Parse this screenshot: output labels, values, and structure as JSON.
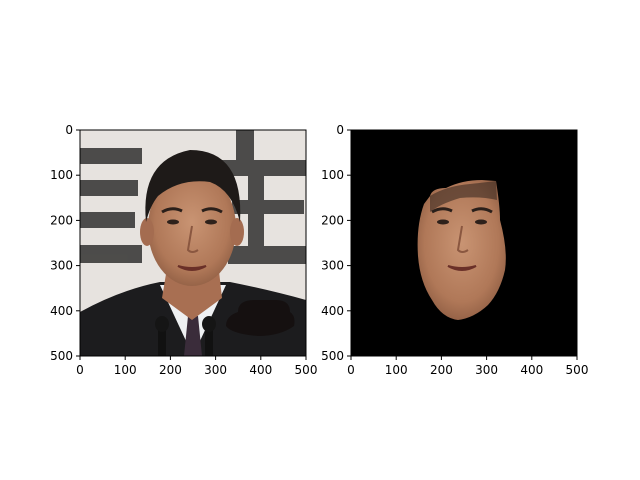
{
  "chart_data": [
    {
      "type": "image",
      "subject": "photo-portrait",
      "xlim": [
        0,
        500
      ],
      "ylim": [
        500,
        0
      ],
      "x_ticks": [
        0,
        100,
        200,
        300,
        400,
        500
      ],
      "y_ticks": [
        0,
        100,
        200,
        300,
        400,
        500
      ],
      "grid": false
    },
    {
      "type": "image",
      "subject": "face-mask",
      "xlim": [
        0,
        500
      ],
      "ylim": [
        500,
        0
      ],
      "x_ticks": [
        0,
        100,
        200,
        300,
        400,
        500
      ],
      "y_ticks": [
        0,
        100,
        200,
        300,
        400,
        500
      ],
      "grid": false
    }
  ],
  "colors": {
    "background": "#ffffff",
    "mask_background": "#000000",
    "skin": "#b98260",
    "hair": "#1e1a18",
    "suit": "#1c1c1e",
    "shirt": "#eef0f2",
    "backdrop": "#e7e3df",
    "backdrop_glyph": "#3c3b3a"
  }
}
